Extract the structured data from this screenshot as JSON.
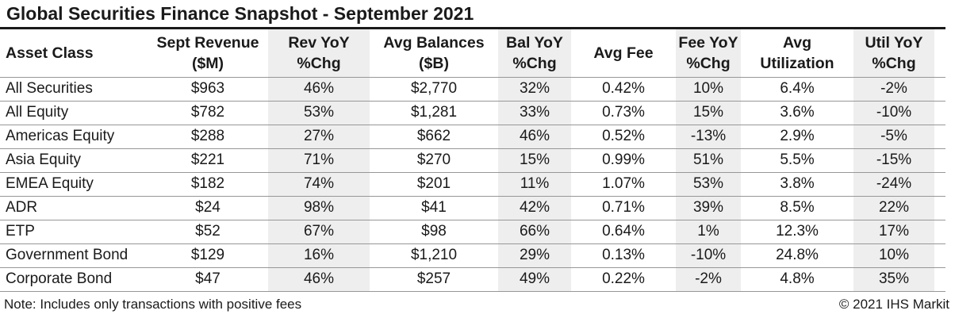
{
  "title": "Global Securities Finance Snapshot - September 2021",
  "footer": {
    "note": "Note: Includes only transactions with positive fees",
    "copyright": "© 2021 IHS Markit"
  },
  "colors": {
    "shaded_column_bg": "#eeeeee",
    "row_border": "#979797",
    "title_rule": "#1a1a1a",
    "text": "#1a1a1a"
  },
  "chart_data": {
    "type": "table",
    "title": "Global Securities Finance Snapshot - September 2021",
    "columns": [
      {
        "label": "Asset Class",
        "lines": [
          "Asset Class"
        ],
        "shaded": false,
        "align": "left"
      },
      {
        "label": "Sept Revenue ($M)",
        "lines": [
          "Sept Revenue",
          "($M)"
        ],
        "shaded": false,
        "align": "center"
      },
      {
        "label": "Rev YoY %Chg",
        "lines": [
          "Rev YoY",
          "%Chg"
        ],
        "shaded": true,
        "align": "center"
      },
      {
        "label": "Avg Balances ($B)",
        "lines": [
          "Avg Balances",
          "($B)"
        ],
        "shaded": false,
        "align": "center"
      },
      {
        "label": "Bal YoY %Chg",
        "lines": [
          "Bal YoY",
          "%Chg"
        ],
        "shaded": true,
        "align": "center"
      },
      {
        "label": "Avg Fee",
        "lines": [
          "Avg Fee"
        ],
        "shaded": false,
        "align": "center"
      },
      {
        "label": "Fee YoY %Chg",
        "lines": [
          "Fee YoY",
          "%Chg"
        ],
        "shaded": true,
        "align": "center"
      },
      {
        "label": "Avg Utilization",
        "lines": [
          "Avg",
          "Utilization"
        ],
        "shaded": false,
        "align": "center"
      },
      {
        "label": "Util YoY %Chg",
        "lines": [
          "Util YoY",
          "%Chg"
        ],
        "shaded": true,
        "align": "center"
      }
    ],
    "rows": [
      [
        "All Securities",
        "$963",
        "46%",
        "$2,770",
        "32%",
        "0.42%",
        "10%",
        "6.4%",
        "-2%"
      ],
      [
        "All Equity",
        "$782",
        "53%",
        "$1,281",
        "33%",
        "0.73%",
        "15%",
        "3.6%",
        "-10%"
      ],
      [
        "Americas Equity",
        "$288",
        "27%",
        "$662",
        "46%",
        "0.52%",
        "-13%",
        "2.9%",
        "-5%"
      ],
      [
        "Asia Equity",
        "$221",
        "71%",
        "$270",
        "15%",
        "0.99%",
        "51%",
        "5.5%",
        "-15%"
      ],
      [
        "EMEA Equity",
        "$182",
        "74%",
        "$201",
        "11%",
        "1.07%",
        "53%",
        "3.8%",
        "-24%"
      ],
      [
        "ADR",
        "$24",
        "98%",
        "$41",
        "42%",
        "0.71%",
        "39%",
        "8.5%",
        "22%"
      ],
      [
        "ETP",
        "$52",
        "67%",
        "$98",
        "66%",
        "0.64%",
        "1%",
        "12.3%",
        "17%"
      ],
      [
        "Government Bond",
        "$129",
        "16%",
        "$1,210",
        "29%",
        "0.13%",
        "-10%",
        "24.8%",
        "10%"
      ],
      [
        "Corporate Bond",
        "$47",
        "46%",
        "$257",
        "49%",
        "0.22%",
        "-2%",
        "4.8%",
        "35%"
      ]
    ],
    "note": "Note: Includes only transactions with positive fees",
    "copyright": "© 2021 IHS Markit"
  }
}
